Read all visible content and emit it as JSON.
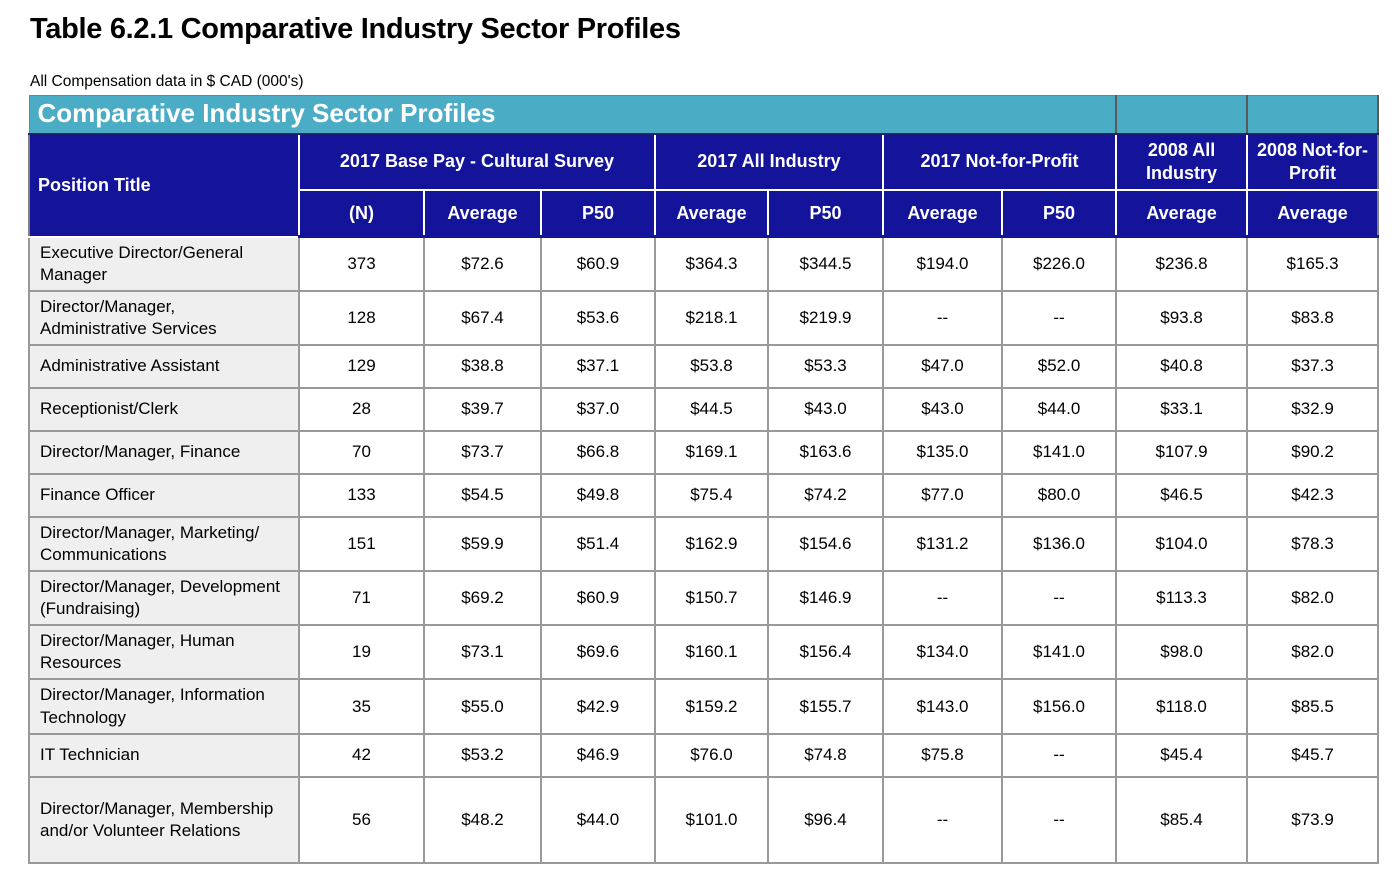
{
  "page": {
    "title": "Table 6.2.1 Comparative Industry Sector Profiles",
    "subtitle": "All Compensation data in $ CAD (000's)"
  },
  "colors": {
    "banner_teal": "#4BACC6",
    "header_blue": "#14149B",
    "position_column_gray": "#EFEFEF",
    "grid_border_gray": "#999999"
  },
  "table": {
    "banner_title": "Comparative Industry Sector Profiles",
    "corner_header": "Position Title",
    "column_groups": [
      {
        "label": "2017 Base Pay - Cultural Survey",
        "sub_columns": [
          "(N)",
          "Average",
          "P50"
        ]
      },
      {
        "label": "2017 All Industry",
        "sub_columns": [
          "Average",
          "P50"
        ]
      },
      {
        "label": "2017 Not-for-Profit",
        "sub_columns": [
          "Average",
          "P50"
        ]
      },
      {
        "label": "2008 All Industry",
        "sub_columns": [
          "Average"
        ]
      },
      {
        "label": "2008 Not-for-Profit",
        "sub_columns": [
          "Average"
        ]
      }
    ],
    "rows": [
      {
        "position": "Executive Director/General Manager",
        "values": [
          "373",
          "$72.6",
          "$60.9",
          "$364.3",
          "$344.5",
          "$194.0",
          "$226.0",
          "$236.8",
          "$165.3"
        ]
      },
      {
        "position": "Director/Manager, Administrative Services",
        "values": [
          "128",
          "$67.4",
          "$53.6",
          "$218.1",
          "$219.9",
          "--",
          "--",
          "$93.8",
          "$83.8"
        ]
      },
      {
        "position": "Administrative Assistant",
        "values": [
          "129",
          "$38.8",
          "$37.1",
          "$53.8",
          "$53.3",
          "$47.0",
          "$52.0",
          "$40.8",
          "$37.3"
        ]
      },
      {
        "position": "Receptionist/Clerk",
        "values": [
          "28",
          "$39.7",
          "$37.0",
          "$44.5",
          "$43.0",
          "$43.0",
          "$44.0",
          "$33.1",
          "$32.9"
        ]
      },
      {
        "position": "Director/Manager, Finance",
        "values": [
          "70",
          "$73.7",
          "$66.8",
          "$169.1",
          "$163.6",
          "$135.0",
          "$141.0",
          "$107.9",
          "$90.2"
        ]
      },
      {
        "position": "Finance Officer",
        "values": [
          "133",
          "$54.5",
          "$49.8",
          "$75.4",
          "$74.2",
          "$77.0",
          "$80.0",
          "$46.5",
          "$42.3"
        ]
      },
      {
        "position": "Director/Manager, Marketing/ Communications",
        "values": [
          "151",
          "$59.9",
          "$51.4",
          "$162.9",
          "$154.6",
          "$131.2",
          "$136.0",
          "$104.0",
          "$78.3"
        ]
      },
      {
        "position": "Director/Manager, Development (Fundraising)",
        "values": [
          "71",
          "$69.2",
          "$60.9",
          "$150.7",
          "$146.9",
          "--",
          "--",
          "$113.3",
          "$82.0"
        ]
      },
      {
        "position": "Director/Manager, Human Resources",
        "values": [
          "19",
          "$73.1",
          "$69.6",
          "$160.1",
          "$156.4",
          "$134.0",
          "$141.0",
          "$98.0",
          "$82.0"
        ]
      },
      {
        "position": "Director/Manager, Information Technology",
        "values": [
          "35",
          "$55.0",
          "$42.9",
          "$159.2",
          "$155.7",
          "$143.0",
          "$156.0",
          "$118.0",
          "$85.5"
        ]
      },
      {
        "position": "IT Technician",
        "values": [
          "42",
          "$53.2",
          "$46.9",
          "$76.0",
          "$74.8",
          "$75.8",
          "--",
          "$45.4",
          "$45.7"
        ]
      },
      {
        "position": "Director/Manager, Membership and/or Volunteer Relations",
        "values": [
          "56",
          "$48.2",
          "$44.0",
          "$101.0",
          "$96.4",
          "--",
          "--",
          "$85.4",
          "$73.9"
        ]
      }
    ]
  }
}
